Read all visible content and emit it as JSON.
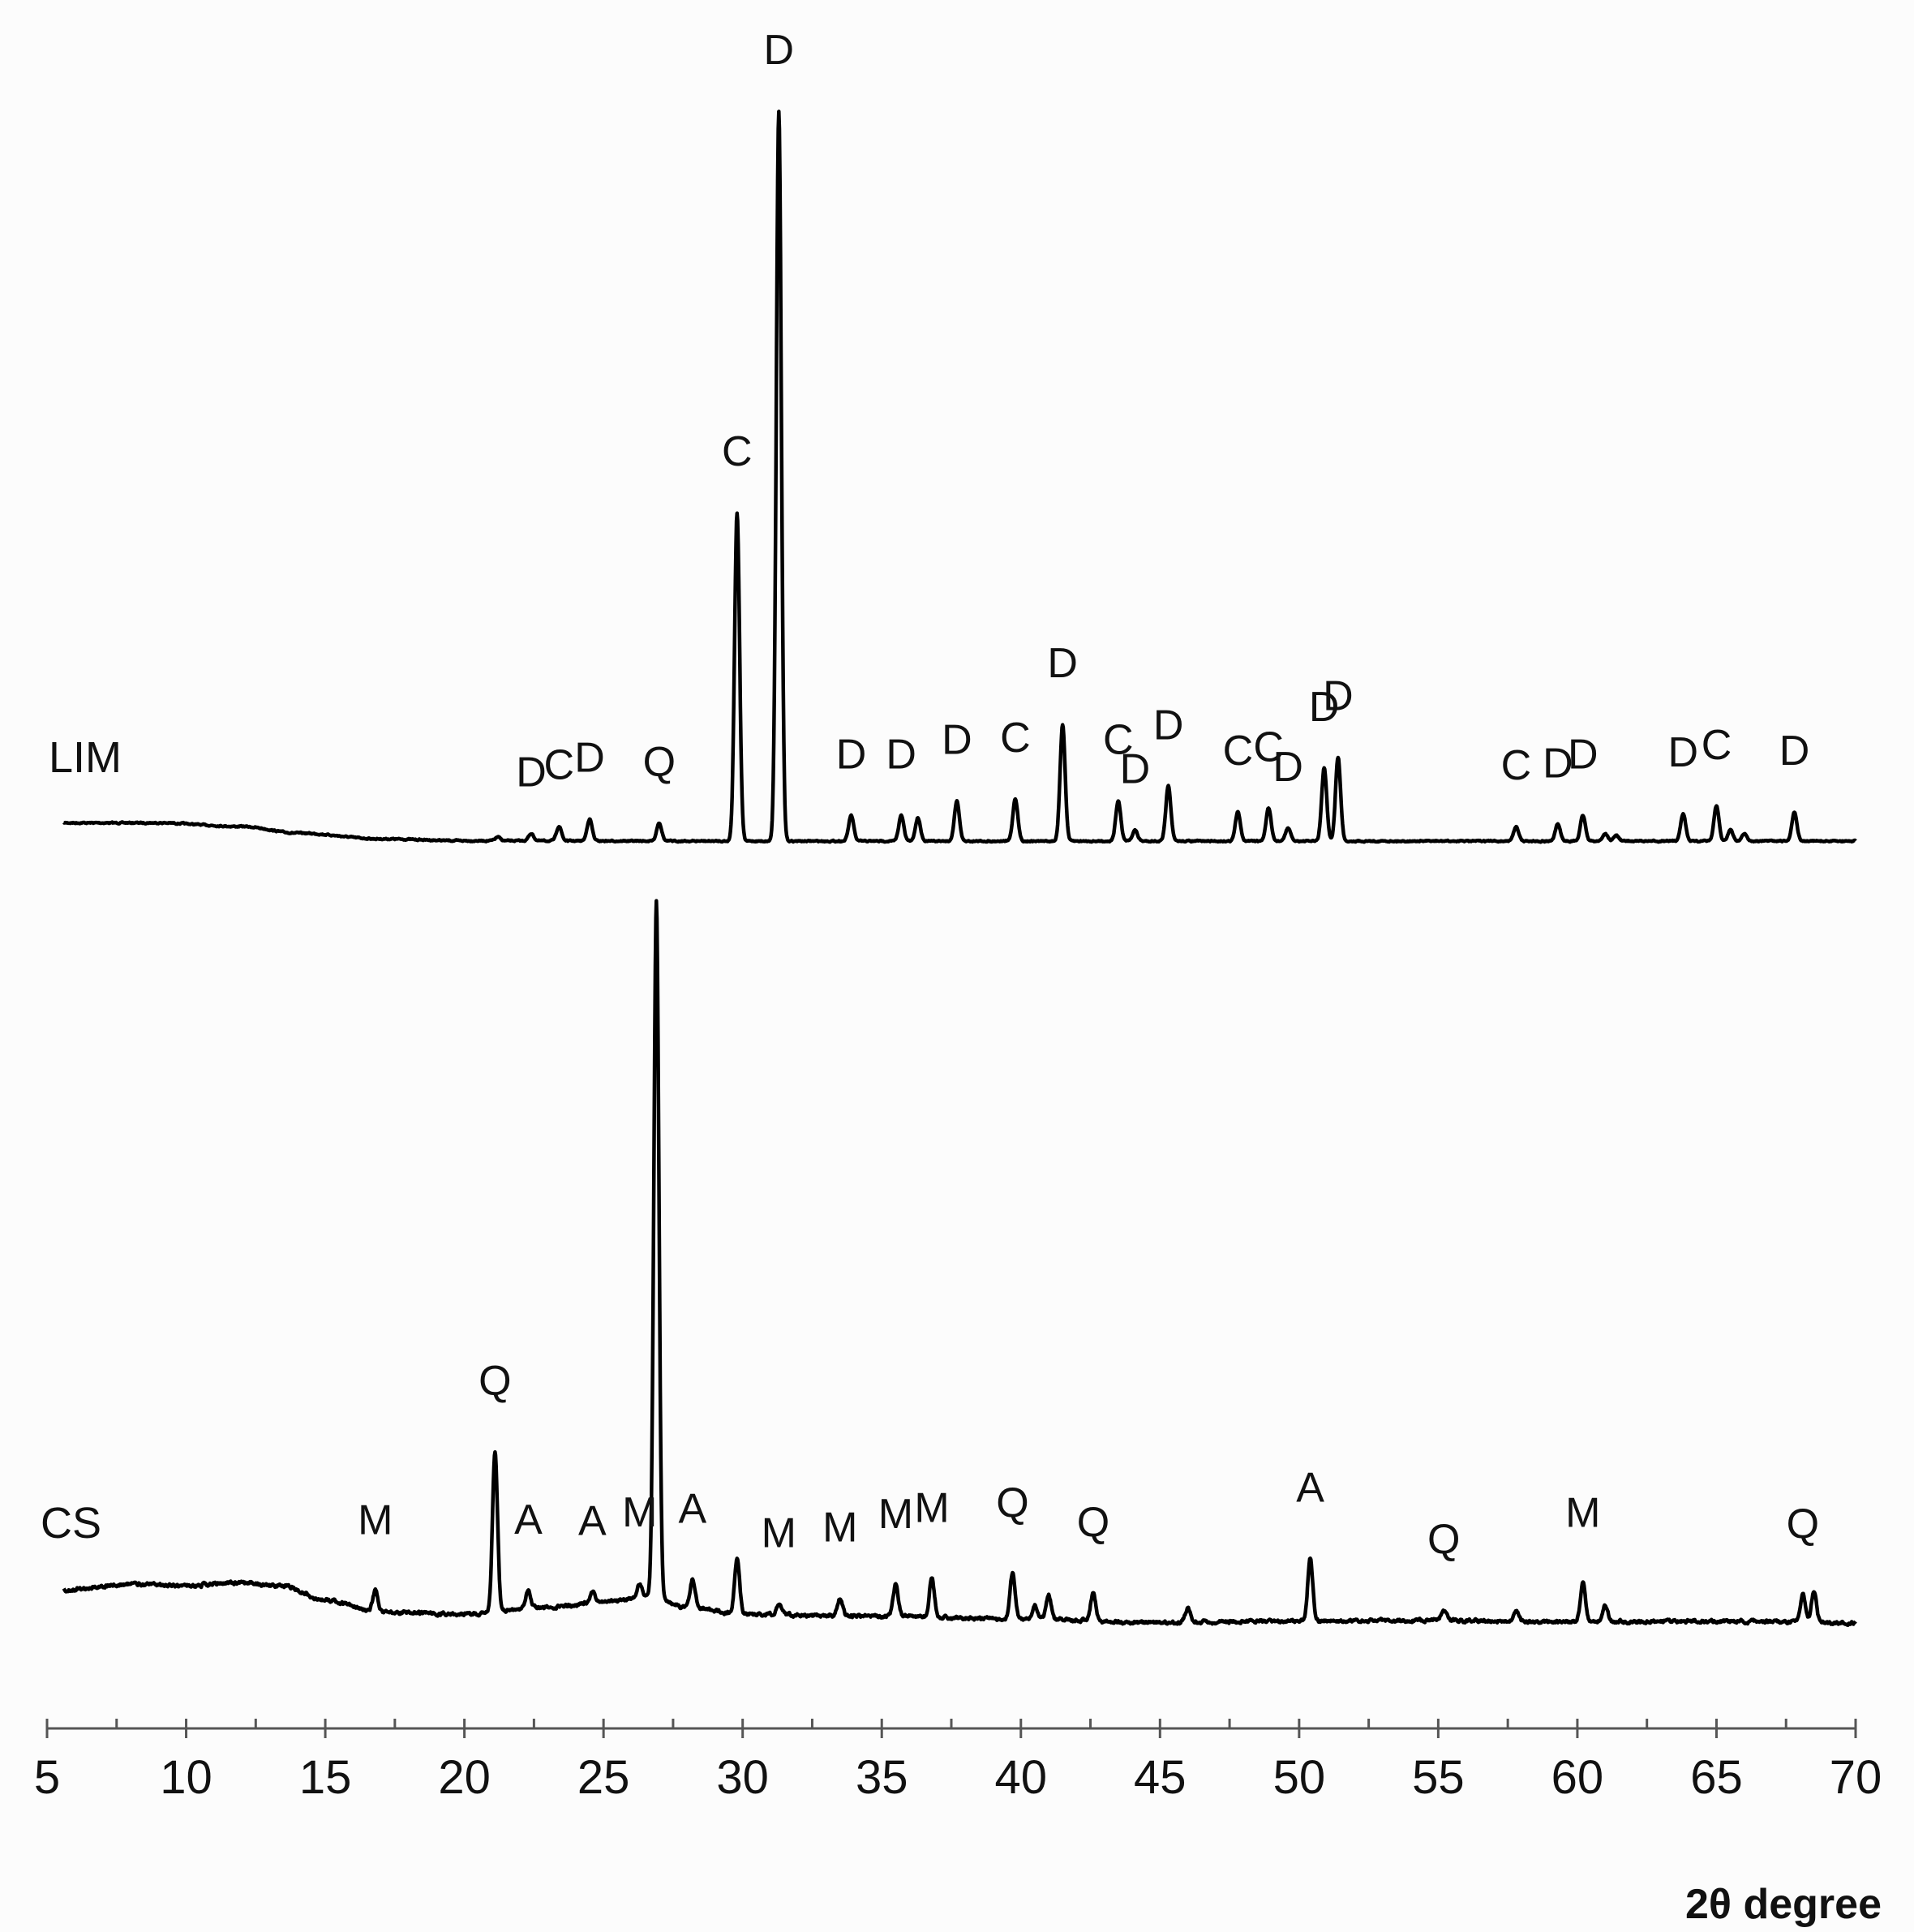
{
  "chart_data": {
    "type": "line",
    "xlabel": "2θ degree",
    "ylabel": "",
    "xlim": [
      5,
      70
    ],
    "x_ticks": [
      5,
      10,
      15,
      20,
      25,
      30,
      35,
      40,
      45,
      50,
      55,
      60,
      65,
      70
    ],
    "grid": false,
    "legend": "none",
    "series": [
      {
        "name": "LIM",
        "baseline": [
          [
            5.6,
            2.5
          ],
          [
            9,
            2.5
          ],
          [
            12,
            2.0
          ],
          [
            14,
            1.1
          ],
          [
            17,
            0.3
          ],
          [
            20,
            0.05
          ],
          [
            30,
            0
          ],
          [
            70,
            0
          ]
        ],
        "peaks": [
          {
            "x": 21.2,
            "h": 0.5
          },
          {
            "x": 22.4,
            "h": 1.0,
            "label": "D"
          },
          {
            "x": 23.4,
            "h": 2.0,
            "label": "C"
          },
          {
            "x": 24.5,
            "h": 3.0,
            "label": "D"
          },
          {
            "x": 27.0,
            "h": 2.5,
            "label": "Q"
          },
          {
            "x": 29.8,
            "h": 45.0,
            "label": "C"
          },
          {
            "x": 31.3,
            "h": 100.0,
            "label": "D"
          },
          {
            "x": 33.9,
            "h": 3.5,
            "label": "D"
          },
          {
            "x": 35.7,
            "h": 3.5,
            "label": "D"
          },
          {
            "x": 36.3,
            "h": 3.2
          },
          {
            "x": 37.7,
            "h": 5.5,
            "label": "D"
          },
          {
            "x": 39.8,
            "h": 5.8,
            "label": "C"
          },
          {
            "x": 41.5,
            "h": 16.0,
            "label": "D"
          },
          {
            "x": 43.5,
            "h": 5.5,
            "label": "C"
          },
          {
            "x": 44.1,
            "h": 1.5,
            "label": "D"
          },
          {
            "x": 45.3,
            "h": 7.5,
            "label": "D"
          },
          {
            "x": 47.8,
            "h": 4.0,
            "label": "C"
          },
          {
            "x": 48.9,
            "h": 4.5,
            "label": "C"
          },
          {
            "x": 49.6,
            "h": 1.8,
            "label": "D"
          },
          {
            "x": 50.9,
            "h": 10.0,
            "label": "D"
          },
          {
            "x": 51.4,
            "h": 11.5,
            "label": "D"
          },
          {
            "x": 57.8,
            "h": 2.0,
            "label": "C"
          },
          {
            "x": 59.3,
            "h": 2.3,
            "label": "D"
          },
          {
            "x": 60.2,
            "h": 3.5,
            "label": "D"
          },
          {
            "x": 61.0,
            "h": 1.0
          },
          {
            "x": 61.4,
            "h": 0.8
          },
          {
            "x": 63.8,
            "h": 3.8,
            "label": "D"
          },
          {
            "x": 65.0,
            "h": 4.8,
            "label": "C"
          },
          {
            "x": 65.5,
            "h": 1.5
          },
          {
            "x": 66.0,
            "h": 1.0
          },
          {
            "x": 67.8,
            "h": 4.0,
            "label": "D"
          }
        ]
      },
      {
        "name": "CS",
        "baseline": [
          [
            5.6,
            5.0
          ],
          [
            8,
            5.8
          ],
          [
            10,
            5.6
          ],
          [
            12,
            6.0
          ],
          [
            13.5,
            5.5
          ],
          [
            15,
            3.5
          ],
          [
            17,
            1.8
          ],
          [
            20,
            1.5
          ],
          [
            23,
            2.5
          ],
          [
            25.5,
            3.5
          ],
          [
            26.6,
            4.0
          ],
          [
            28,
            2.5
          ],
          [
            30,
            1.5
          ],
          [
            35,
            1.2
          ],
          [
            40,
            0.8
          ],
          [
            45,
            0.3
          ],
          [
            50,
            0.5
          ],
          [
            55,
            0.6
          ],
          [
            60,
            0.4
          ],
          [
            65,
            0.5
          ],
          [
            70,
            0.2
          ]
        ],
        "peaks": [
          {
            "x": 16.8,
            "h": 3.0,
            "label": "M"
          },
          {
            "x": 21.1,
            "h": 23.0,
            "label": "Q"
          },
          {
            "x": 22.3,
            "h": 2.5,
            "label": "A"
          },
          {
            "x": 24.6,
            "h": 1.5,
            "label": "A"
          },
          {
            "x": 26.3,
            "h": 2.0,
            "label": "M"
          },
          {
            "x": 26.9,
            "h": 100.0
          },
          {
            "x": 28.2,
            "h": 4.0,
            "label": "A"
          },
          {
            "x": 29.8,
            "h": 8.0
          },
          {
            "x": 31.3,
            "h": 1.5,
            "label": "M"
          },
          {
            "x": 33.5,
            "h": 2.5,
            "label": "M"
          },
          {
            "x": 35.5,
            "h": 4.5,
            "label": "M"
          },
          {
            "x": 36.8,
            "h": 5.5,
            "label": "M"
          },
          {
            "x": 39.7,
            "h": 6.5,
            "label": "Q"
          },
          {
            "x": 40.5,
            "h": 2.0
          },
          {
            "x": 41.0,
            "h": 3.5
          },
          {
            "x": 42.6,
            "h": 4.0,
            "label": "Q"
          },
          {
            "x": 46.0,
            "h": 2.0
          },
          {
            "x": 50.4,
            "h": 9.0,
            "label": "A"
          },
          {
            "x": 55.2,
            "h": 1.5,
            "label": "Q"
          },
          {
            "x": 57.8,
            "h": 1.5
          },
          {
            "x": 60.2,
            "h": 5.5,
            "label": "M"
          },
          {
            "x": 61.0,
            "h": 2.5
          },
          {
            "x": 68.1,
            "h": 4.0,
            "label": "Q"
          },
          {
            "x": 68.5,
            "h": 4.5
          }
        ]
      }
    ]
  }
}
